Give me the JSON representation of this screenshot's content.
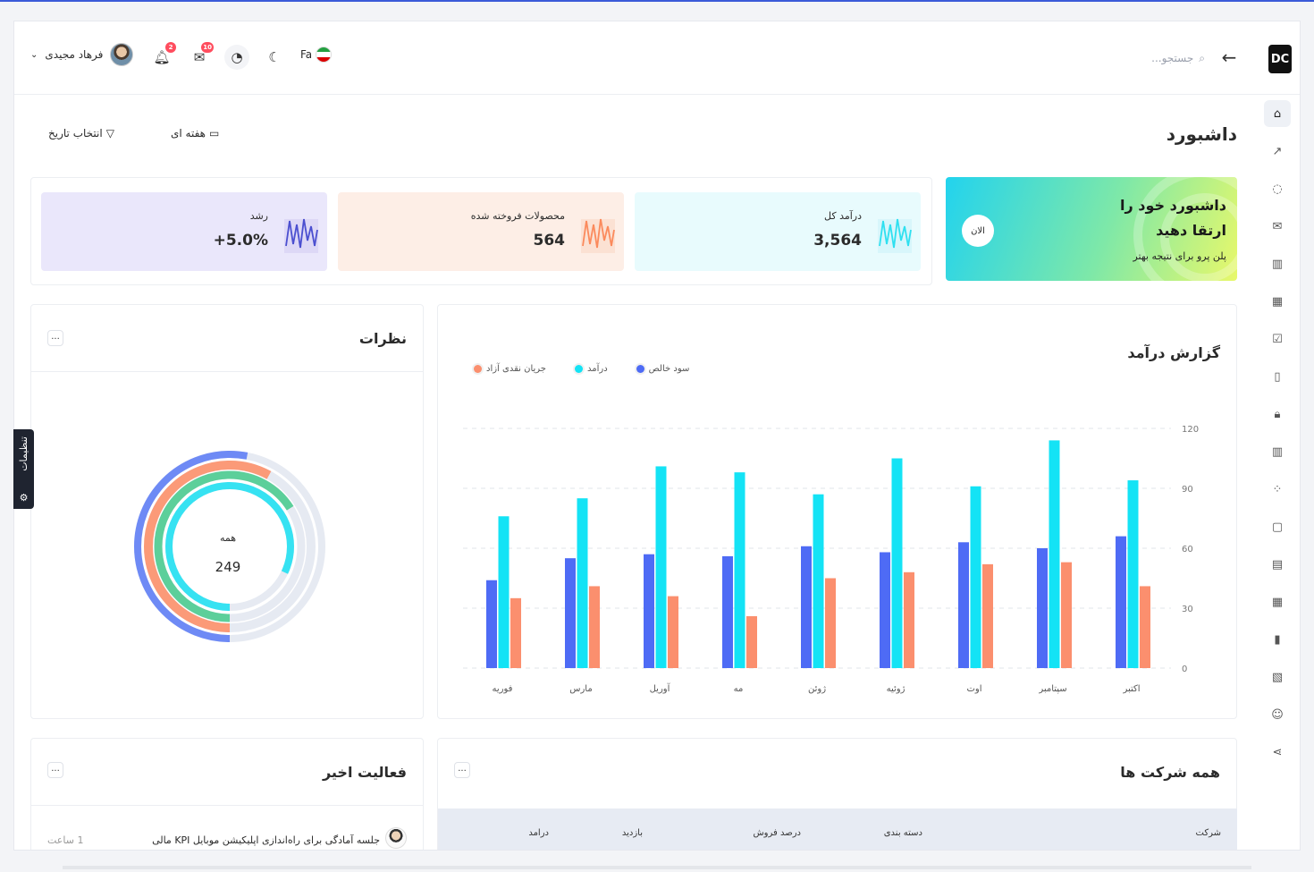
{
  "header": {
    "logo": "DC",
    "search_placeholder": "جستجو...",
    "lang_label": "Fa",
    "mail_badge": "10",
    "notif_badge": "2",
    "user_name": "فرهاد مجیدی"
  },
  "page": {
    "title": "داشبورد",
    "range_label": "هفته ای",
    "date_label": "انتخاب تاریخ"
  },
  "stats": [
    {
      "label": "درآمد کل",
      "value": "3,564",
      "color": "#2ee0f0"
    },
    {
      "label": "محصولات فروخته شده",
      "value": "564",
      "color": "#fb8a5c"
    },
    {
      "label": "رشد",
      "value": "+5.0%",
      "color": "#4b4fd0"
    }
  ],
  "promo": {
    "title": "داشبورد خود را ارتقا دهید",
    "subtitle": "پلن پرو برای نتیجه بهتر",
    "button": "الان"
  },
  "income_report": {
    "title": "گزارش درآمد",
    "more": "..."
  },
  "chart_data": {
    "type": "bar",
    "categories": [
      "اکتبر",
      "سپتامبر",
      "اوت",
      "ژوئیه",
      "ژوئن",
      "مه",
      "آوریل",
      "مارس",
      "فوریه"
    ],
    "series": [
      {
        "name": "سود خالص",
        "color": "#4e6bf5",
        "values": [
          66,
          60,
          63,
          58,
          61,
          56,
          57,
          55,
          44
        ]
      },
      {
        "name": "درآمد",
        "color": "#14e3f5",
        "values": [
          94,
          114,
          91,
          105,
          87,
          98,
          101,
          85,
          76
        ]
      },
      {
        "name": "جریان نقدی آزاد",
        "color": "#fb8f6e",
        "values": [
          41,
          53,
          52,
          48,
          45,
          26,
          36,
          41,
          35
        ]
      }
    ],
    "yticks": [
      "0",
      "30",
      "60",
      "90",
      "120"
    ],
    "ylim": [
      0,
      120
    ],
    "grid": true,
    "legend_position": "top-left"
  },
  "reviews": {
    "title": "نظرات",
    "center_label": "همه",
    "center_value": "249",
    "more": "...",
    "rings": [
      {
        "color": "#6e8af5",
        "fraction": 0.53
      },
      {
        "color": "#fb9a78",
        "fraction": 0.58
      },
      {
        "color": "#5ccf9a",
        "fraction": 0.66
      },
      {
        "color": "#36e2f2",
        "fraction": 0.82
      }
    ]
  },
  "companies": {
    "title": "همه شرکت ها",
    "more": "...",
    "columns": [
      "شرکت",
      "دسته بندی",
      "درصد فروش",
      "بازدید",
      "درامد"
    ]
  },
  "activity": {
    "title": "فعالیت اخیر",
    "more": "...",
    "items": [
      {
        "text": "جلسه آمادگی برای راه‌اندازی اپلیکیشن موبایل KPI مالی",
        "time": "1 ساعت"
      }
    ]
  },
  "settings_tab": {
    "label": "تنظیمات"
  },
  "sidebar": {
    "items": [
      {
        "name": "home-icon",
        "glyph": "⌂"
      },
      {
        "name": "trend-icon",
        "glyph": "↗"
      },
      {
        "name": "chat-icon",
        "glyph": "◌"
      },
      {
        "name": "mail-icon",
        "glyph": "✉"
      },
      {
        "name": "columns-icon",
        "glyph": "▥"
      },
      {
        "name": "calendar-icon",
        "glyph": "▦"
      },
      {
        "name": "clipboard-check-icon",
        "glyph": "☑"
      },
      {
        "name": "file-icon",
        "glyph": "▯"
      },
      {
        "name": "lock-icon",
        "glyph": "🔒︎"
      },
      {
        "name": "book-icon",
        "glyph": "▥"
      },
      {
        "name": "grid-icon",
        "glyph": "⁘"
      },
      {
        "name": "bag-icon",
        "glyph": "▢"
      },
      {
        "name": "clipboard-icon",
        "glyph": "▤"
      },
      {
        "name": "table-icon",
        "glyph": "▦"
      },
      {
        "name": "bar-chart-icon",
        "glyph": "▮"
      },
      {
        "name": "map-icon",
        "glyph": "▧"
      },
      {
        "name": "smile-icon",
        "glyph": "☺"
      },
      {
        "name": "share-icon",
        "glyph": "⋖"
      }
    ]
  }
}
